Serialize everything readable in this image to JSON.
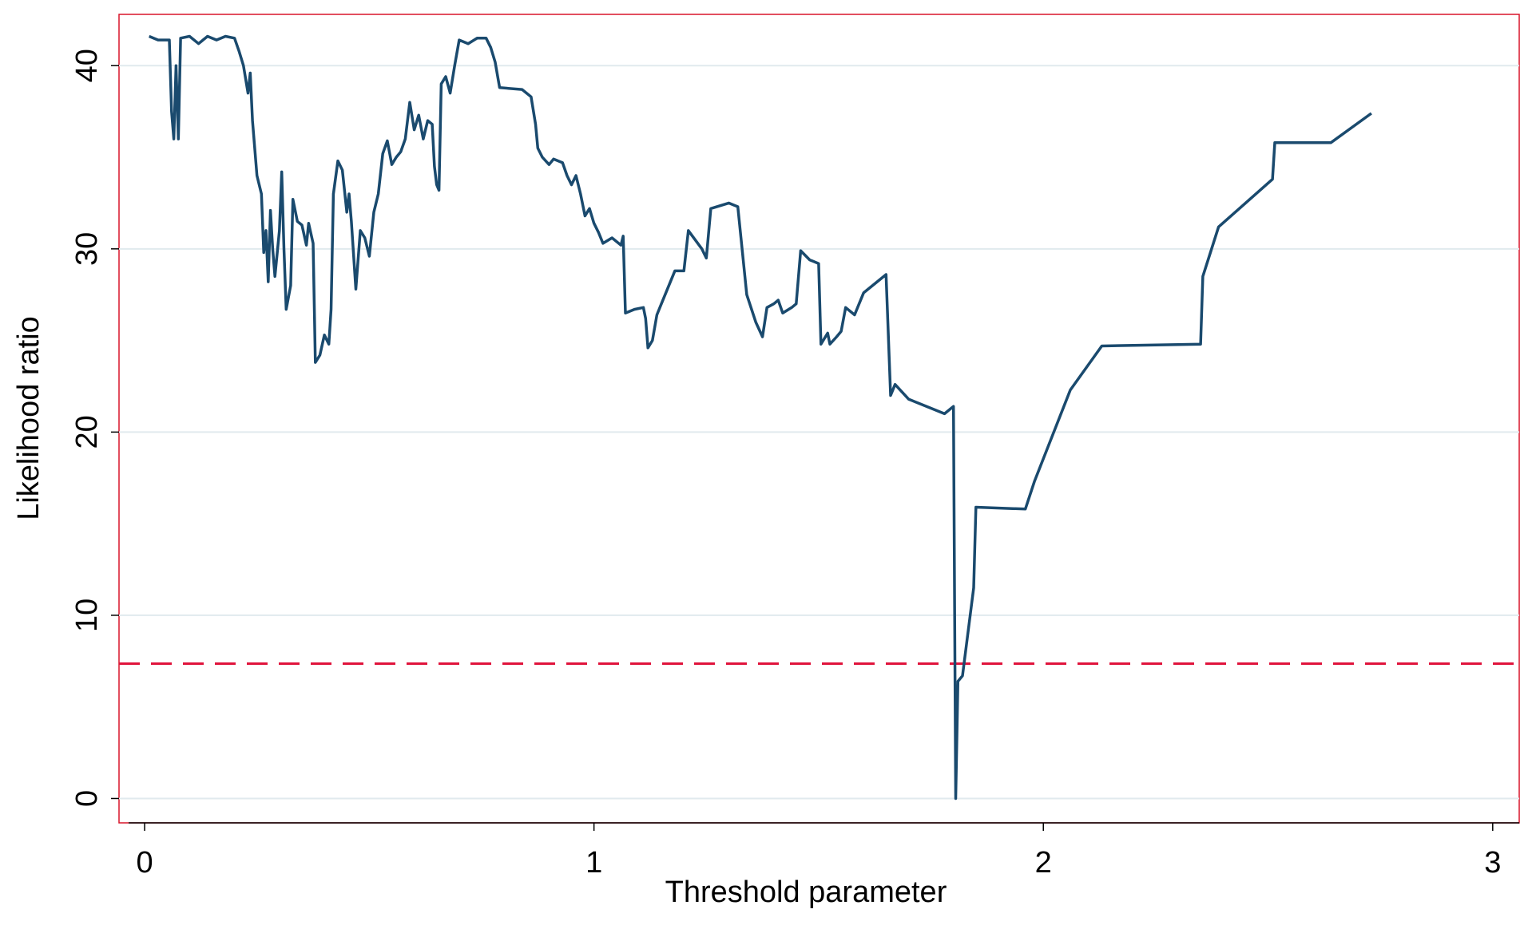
{
  "chart_data": {
    "type": "line",
    "xlabel": "Threshold parameter",
    "ylabel": "Likelihood ratio",
    "xlim": [
      -0.057,
      3.059
    ],
    "xticks": [
      0,
      1,
      2,
      3
    ],
    "ylim": [
      -1.33,
      42.8
    ],
    "yticks": [
      0,
      10,
      20,
      30,
      40
    ],
    "grid": true,
    "frame_color": "#d8152a",
    "reference_line": {
      "value": 7.36,
      "color": "#e0143c"
    },
    "x": [
      0.01,
      0.03,
      0.055,
      0.06,
      0.065,
      0.07,
      0.075,
      0.08,
      0.1,
      0.12,
      0.14,
      0.16,
      0.18,
      0.2,
      0.21,
      0.22,
      0.23,
      0.235,
      0.24,
      0.25,
      0.26,
      0.265,
      0.27,
      0.275,
      0.28,
      0.285,
      0.29,
      0.3,
      0.305,
      0.31,
      0.315,
      0.325,
      0.33,
      0.34,
      0.35,
      0.36,
      0.365,
      0.375,
      0.38,
      0.39,
      0.4,
      0.41,
      0.415,
      0.42,
      0.43,
      0.44,
      0.45,
      0.455,
      0.46,
      0.47,
      0.48,
      0.49,
      0.5,
      0.51,
      0.52,
      0.53,
      0.54,
      0.55,
      0.56,
      0.57,
      0.58,
      0.59,
      0.6,
      0.61,
      0.62,
      0.63,
      0.64,
      0.645,
      0.65,
      0.655,
      0.66,
      0.67,
      0.68,
      0.69,
      0.7,
      0.72,
      0.74,
      0.76,
      0.77,
      0.78,
      0.79,
      0.84,
      0.86,
      0.87,
      0.875,
      0.885,
      0.9,
      0.91,
      0.93,
      0.94,
      0.95,
      0.96,
      0.97,
      0.98,
      0.99,
      1.0,
      1.01,
      1.02,
      1.04,
      1.06,
      1.065,
      1.07,
      1.09,
      1.11,
      1.115,
      1.12,
      1.13,
      1.14,
      1.15,
      1.18,
      1.2,
      1.21,
      1.24,
      1.25,
      1.26,
      1.3,
      1.32,
      1.34,
      1.36,
      1.375,
      1.385,
      1.4,
      1.41,
      1.42,
      1.44,
      1.45,
      1.46,
      1.48,
      1.5,
      1.505,
      1.52,
      1.525,
      1.54,
      1.55,
      1.56,
      1.58,
      1.6,
      1.65,
      1.66,
      1.67,
      1.7,
      1.78,
      1.8,
      1.805,
      1.81,
      1.82,
      1.845,
      1.85,
      1.96,
      1.98,
      2.06,
      2.13,
      2.35,
      2.355,
      2.39,
      2.51,
      2.515,
      2.64,
      2.73
    ],
    "series": [
      {
        "color": "#1a4a6e",
        "values": [
          41.6,
          41.4,
          41.4,
          37.5,
          36.0,
          40.0,
          36.0,
          41.5,
          41.6,
          41.2,
          41.6,
          41.4,
          41.6,
          41.5,
          40.8,
          40.0,
          38.5,
          39.6,
          37.0,
          34.0,
          33.0,
          29.8,
          31.0,
          28.2,
          32.1,
          30.0,
          28.5,
          31.0,
          34.2,
          30.0,
          26.7,
          28.0,
          32.7,
          31.5,
          31.3,
          30.2,
          31.4,
          30.3,
          23.8,
          24.2,
          25.3,
          24.8,
          26.7,
          33.0,
          34.8,
          34.3,
          32.0,
          33.0,
          31.5,
          27.8,
          31.0,
          30.6,
          29.6,
          32.0,
          33.0,
          35.2,
          35.9,
          34.6,
          35.0,
          35.3,
          36.0,
          38.0,
          36.5,
          37.3,
          36.0,
          37.0,
          36.8,
          34.5,
          33.5,
          33.2,
          39.0,
          39.4,
          38.5,
          40.0,
          41.4,
          41.2,
          41.5,
          41.5,
          41.0,
          40.2,
          38.8,
          38.7,
          38.3,
          36.8,
          35.5,
          35.0,
          34.6,
          34.9,
          34.7,
          34.0,
          33.5,
          34.0,
          33.0,
          31.8,
          32.2,
          31.4,
          30.9,
          30.3,
          30.6,
          30.2,
          30.7,
          26.5,
          26.7,
          26.8,
          26.2,
          24.6,
          25.0,
          26.4,
          27.0,
          28.8,
          28.8,
          31.0,
          30.0,
          29.5,
          32.2,
          32.5,
          32.3,
          27.5,
          26.0,
          25.2,
          26.8,
          27.0,
          27.2,
          26.5,
          26.8,
          27.0,
          29.9,
          29.4,
          29.2,
          24.8,
          25.4,
          24.8,
          25.2,
          25.5,
          26.8,
          26.4,
          27.6,
          28.6,
          22.0,
          22.6,
          21.8,
          21.0,
          21.4,
          0.0,
          6.4,
          6.7,
          11.5,
          15.9,
          15.8,
          17.3,
          22.3,
          24.7,
          24.8,
          28.5,
          31.2,
          33.8,
          35.8,
          35.8,
          37.4
        ]
      }
    ]
  }
}
